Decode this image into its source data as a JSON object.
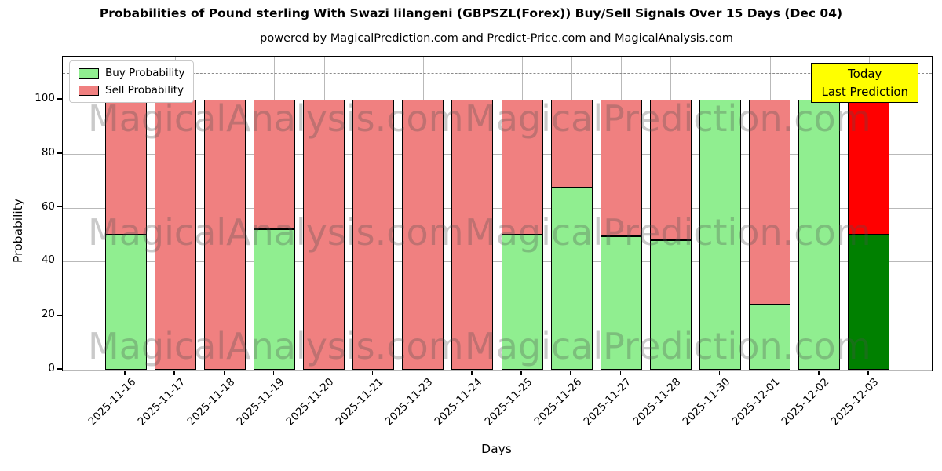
{
  "title": "Probabilities of Pound sterling With Swazi lilangeni (GBPSZL(Forex)) Buy/Sell Signals Over 15 Days (Dec 04)",
  "subtitle": "powered by MagicalPrediction.com and Predict-Price.com and MagicalAnalysis.com",
  "annotation": {
    "line1": "Today",
    "line2": "Last Prediction",
    "bg": "#ffff00"
  },
  "watermarks": {
    "left": "MagicalAnalysis.com",
    "right": "MagicalPrediction.com"
  },
  "chart_data": {
    "type": "bar",
    "stacked": true,
    "title": "Probabilities of Pound sterling With Swazi lilangeni (GBPSZL(Forex)) Buy/Sell Signals Over 15 Days (Dec 04)",
    "subtitle": "powered by MagicalPrediction.com and Predict-Price.com and MagicalAnalysis.com",
    "xlabel": "Days",
    "ylabel": "Probability",
    "categories": [
      "2025-11-16",
      "2025-11-17",
      "2025-11-18",
      "2025-11-19",
      "2025-11-20",
      "2025-11-21",
      "2025-11-23",
      "2025-11-24",
      "2025-11-25",
      "2025-11-26",
      "2025-11-27",
      "2025-11-28",
      "2025-11-30",
      "2025-12-01",
      "2025-12-02",
      "2025-12-03"
    ],
    "series": [
      {
        "name": "Buy Probability",
        "color": "#90ee90",
        "values": [
          50,
          0,
          0,
          52,
          0,
          0,
          0,
          0,
          50,
          67.5,
          49.5,
          48,
          100,
          24,
          100,
          50
        ]
      },
      {
        "name": "Sell Probability",
        "color": "#f08080",
        "values": [
          50,
          100,
          100,
          48,
          100,
          100,
          100,
          100,
          50,
          32.5,
          50.5,
          52,
          0,
          76,
          0,
          50
        ]
      }
    ],
    "highlight_last_bar": {
      "buy_color": "#008000",
      "sell_color": "#ff0000"
    },
    "yticks": [
      0,
      20,
      40,
      60,
      80,
      100
    ],
    "ylim": [
      0,
      116
    ],
    "dashed_hline": 110,
    "grid": true,
    "legend_position": "upper left"
  }
}
